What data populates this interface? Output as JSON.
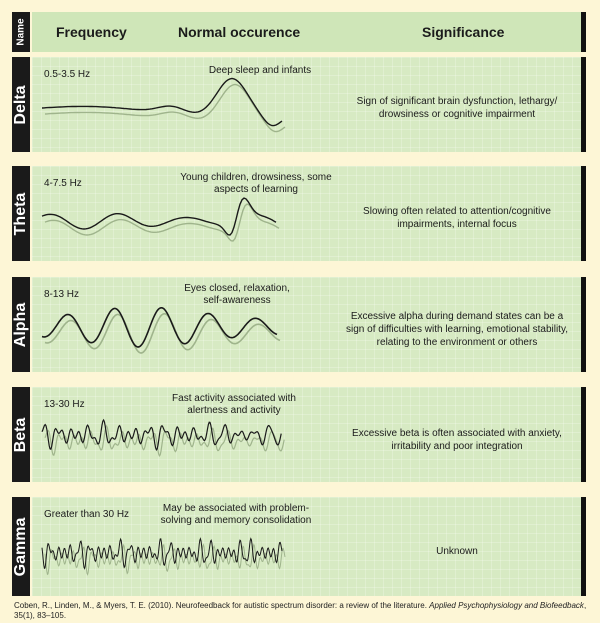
{
  "header": {
    "name": "Name",
    "frequency": "Frequency",
    "normal_occurence": "Normal occurence",
    "significance": "Significance"
  },
  "rows": [
    {
      "name": "Delta",
      "frequency": "0.5-3.5 Hz",
      "occurence": [
        "Deep sleep and infants"
      ],
      "significance": [
        "Sign of significant brain dysfunction, lethargy/",
        "drowsiness or cognitive impairment"
      ]
    },
    {
      "name": "Theta",
      "frequency": "4-7.5 Hz",
      "occurence": [
        "Young children, drowsiness, some",
        "aspects of learning"
      ],
      "significance": [
        "Slowing often related to attention/cognitive",
        "impairments, internal focus"
      ]
    },
    {
      "name": "Alpha",
      "frequency": "8-13 Hz",
      "occurence": [
        "Eyes closed, relaxation,",
        "self-awareness"
      ],
      "significance": [
        "Excessive alpha during demand states can be a",
        "sign of difficulties with learning, emotional stability,",
        "relating to the environment or others"
      ]
    },
    {
      "name": "Beta",
      "frequency": "13-30 Hz",
      "occurence": [
        "Fast activity associated with",
        "alertness and activity"
      ],
      "significance": [
        "Excessive beta is often associated with anxiety,",
        "irritability and poor integration"
      ]
    },
    {
      "name": "Gamma",
      "frequency": "Greater than 30 Hz",
      "occurence": [
        "May be associated with problem-",
        "solving and memory consolidation"
      ],
      "significance": [
        "Unknown"
      ]
    }
  ],
  "citation": {
    "authors": "Coben, R., Linden, M., & Myers, T. E. (2010). Neurofeedback for autistic spectrum disorder: a review of the literature. ",
    "journal": "Applied Psychophysiology and Biofeedback",
    "details": ", 35(1), 83–105."
  },
  "colors": {
    "background": "#fdf6d6",
    "panel": "#d7eac3",
    "header_bar": "#cfe6b8",
    "label": "#1a1a1a",
    "wave": "#1a1a1a",
    "wave_shadow": "#9fb48c"
  }
}
